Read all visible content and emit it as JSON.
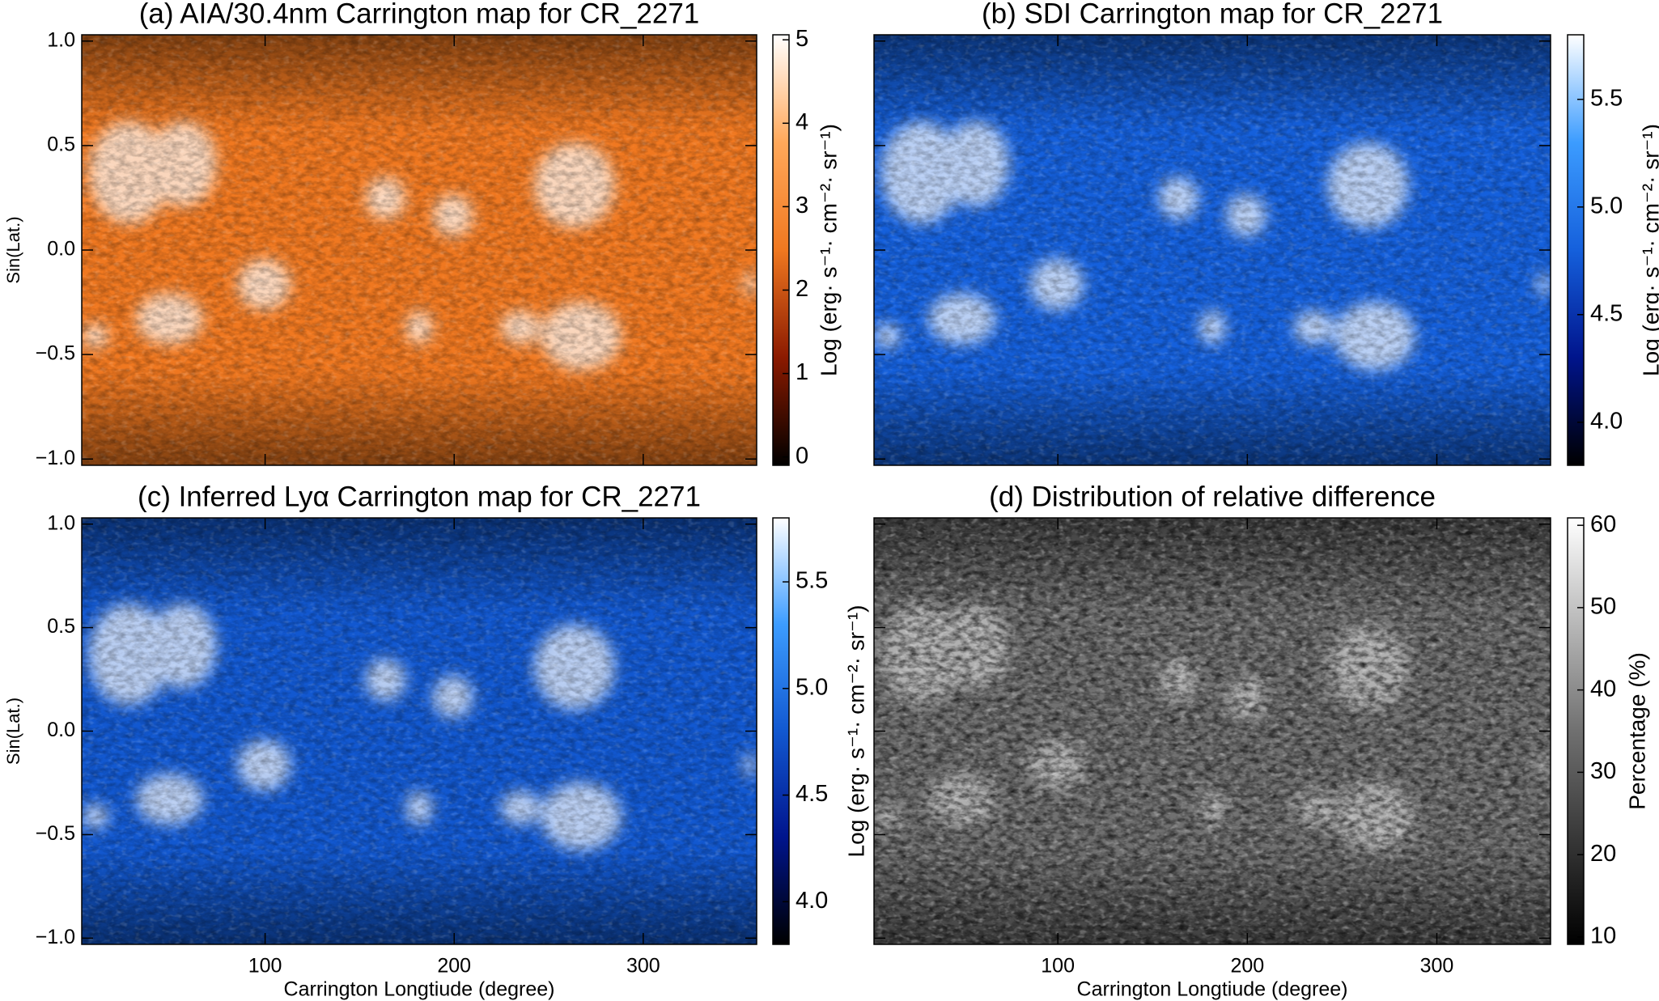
{
  "chart_data": [
    {
      "type": "heatmap",
      "title": "(a) AIA/30.4nm Carrington map for CR_2271",
      "ylabel": "Sin(Lat.)",
      "xlim": [
        3,
        360
      ],
      "ylim": [
        -1.03,
        1.03
      ],
      "xticks": [
        100,
        200,
        300
      ],
      "show_xtick_labels": false,
      "yticks": [
        {
          "value": -1.0,
          "label": "−1.0"
        },
        {
          "value": -0.5,
          "label": "−0.5"
        },
        {
          "value": 0.0,
          "label": "0.0"
        },
        {
          "value": 0.5,
          "label": "0.5"
        },
        {
          "value": 1.0,
          "label": "1.0"
        }
      ],
      "show_ytick_labels": true,
      "colorbar": {
        "label": "Log (erg· s⁻¹· cm⁻²· sr⁻¹)",
        "lim": [
          -0.1,
          5.06
        ],
        "ticks": [
          0,
          1,
          2,
          3,
          4,
          5
        ]
      },
      "colormap": [
        "#000000",
        "#8b1a00",
        "#f07820",
        "#ffa85a",
        "#ffffff"
      ]
    },
    {
      "type": "heatmap",
      "title": "(b) SDI Carrington map for CR_2271",
      "xlim": [
        3,
        360
      ],
      "ylim": [
        -1.03,
        1.03
      ],
      "xticks": [
        100,
        200,
        300
      ],
      "show_xtick_labels": false,
      "yticks": [
        -1.0,
        -0.5,
        0.0,
        0.5,
        1.0
      ],
      "show_ytick_labels": false,
      "colorbar": {
        "label": "Log (erg· s⁻¹· cm⁻²· sr⁻¹)",
        "lim": [
          3.8,
          5.8
        ],
        "ticks": [
          {
            "value": 4.0,
            "label": "4.0"
          },
          {
            "value": 4.5,
            "label": "4.5"
          },
          {
            "value": 5.0,
            "label": "5.0"
          },
          {
            "value": 5.5,
            "label": "5.5"
          }
        ]
      },
      "colormap": [
        "#000000",
        "#00148c",
        "#1560dc",
        "#3c9cff",
        "#ffffff"
      ]
    },
    {
      "type": "heatmap",
      "title": "(c) Inferred Lyα Carrington map for CR_2271",
      "xlabel": "Carrington Longtiude (degree)",
      "ylabel": "Sin(Lat.)",
      "xlim": [
        3,
        360
      ],
      "ylim": [
        -1.03,
        1.03
      ],
      "xticks": [
        100,
        200,
        300
      ],
      "show_xtick_labels": true,
      "yticks": [
        {
          "value": -1.0,
          "label": "−1.0"
        },
        {
          "value": -0.5,
          "label": "−0.5"
        },
        {
          "value": 0.0,
          "label": "0.0"
        },
        {
          "value": 0.5,
          "label": "0.5"
        },
        {
          "value": 1.0,
          "label": "1.0"
        }
      ],
      "show_ytick_labels": true,
      "colorbar": {
        "label": "Log (erg· s⁻¹· cm⁻²· sr⁻¹)",
        "lim": [
          3.8,
          5.8
        ],
        "ticks": [
          {
            "value": 4.0,
            "label": "4.0"
          },
          {
            "value": 4.5,
            "label": "4.5"
          },
          {
            "value": 5.0,
            "label": "5.0"
          },
          {
            "value": 5.5,
            "label": "5.5"
          }
        ]
      },
      "colormap": [
        "#000000",
        "#00148c",
        "#1258d0",
        "#3c9cff",
        "#ffffff"
      ]
    },
    {
      "type": "heatmap",
      "title": "(d) Distribution of relative difference",
      "xlabel": "Carrington Longtiude (degree)",
      "xlim": [
        3,
        360
      ],
      "ylim": [
        -1.03,
        1.03
      ],
      "xticks": [
        100,
        200,
        300
      ],
      "show_xtick_labels": true,
      "yticks": [
        -1.0,
        -0.5,
        0.0,
        0.5,
        1.0
      ],
      "show_ytick_labels": false,
      "colorbar": {
        "label": "Percentage (%)",
        "lim": [
          9.1,
          60.9
        ],
        "ticks": [
          10,
          20,
          30,
          40,
          50,
          60
        ]
      },
      "colormap": [
        "#000000",
        "#707070",
        "#ffffff"
      ]
    }
  ]
}
